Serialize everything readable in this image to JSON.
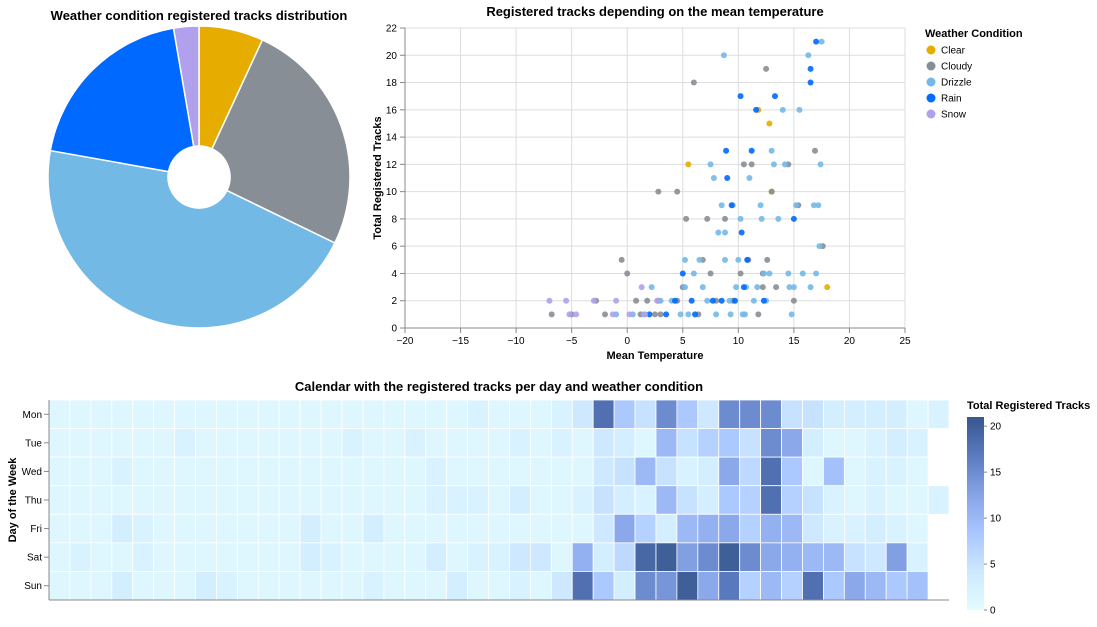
{
  "chart_data": [
    {
      "type": "pie",
      "title": "Weather condition registered tracks distribution",
      "donut": true,
      "categories": [
        "Clear",
        "Cloudy",
        "Drizzle",
        "Rain",
        "Snow"
      ],
      "values": [
        6.9,
        25.3,
        45.6,
        19.5,
        2.7
      ],
      "colors": [
        "#e6ac00",
        "#888e95",
        "#73b9e6",
        "#0069ff",
        "#b1a0ec"
      ]
    },
    {
      "type": "scatter",
      "title": "Registered tracks depending on the mean temperature",
      "xlabel": "Mean Temperature",
      "ylabel": "Total Registered Tracks",
      "xlim": [
        -20,
        25
      ],
      "ylim": [
        0,
        22
      ],
      "xticks": [
        "−20",
        "−15",
        "−10",
        "−5",
        "0",
        "5",
        "10",
        "15",
        "20",
        "25"
      ],
      "yticks": [
        "0",
        "2",
        "4",
        "6",
        "8",
        "10",
        "12",
        "14",
        "16",
        "18",
        "20",
        "22"
      ],
      "grid": true,
      "legend_title": "Weather Condition",
      "legend_position": "right",
      "series": [
        {
          "name": "Clear",
          "color": "#e6ac00",
          "points": [
            [
              5.5,
              12
            ],
            [
              11.8,
              16
            ],
            [
              12.8,
              15
            ],
            [
              13.0,
              10
            ],
            [
              18.0,
              3
            ]
          ]
        },
        {
          "name": "Cloudy",
          "color": "#888e95",
          "points": [
            [
              -6.8,
              1
            ],
            [
              -5.0,
              1
            ],
            [
              -2.8,
              2
            ],
            [
              -2.0,
              1
            ],
            [
              -0.5,
              5
            ],
            [
              0.0,
              4
            ],
            [
              0.8,
              2
            ],
            [
              1.2,
              1
            ],
            [
              1.8,
              2
            ],
            [
              2.5,
              1
            ],
            [
              2.8,
              2
            ],
            [
              3.0,
              1
            ],
            [
              2.8,
              10
            ],
            [
              4.5,
              10
            ],
            [
              4.5,
              2
            ],
            [
              5.0,
              3
            ],
            [
              5.3,
              8
            ],
            [
              6.0,
              18
            ],
            [
              6.4,
              1
            ],
            [
              6.8,
              5
            ],
            [
              7.2,
              8
            ],
            [
              7.5,
              4
            ],
            [
              8.0,
              2
            ],
            [
              8.8,
              8
            ],
            [
              9.5,
              2
            ],
            [
              10.2,
              4
            ],
            [
              10.5,
              12
            ],
            [
              10.9,
              5
            ],
            [
              11.2,
              12
            ],
            [
              11.8,
              1
            ],
            [
              12.2,
              3
            ],
            [
              12.5,
              19
            ],
            [
              12.2,
              4
            ],
            [
              12.6,
              5
            ],
            [
              13.0,
              10
            ],
            [
              13.4,
              3
            ],
            [
              14.5,
              12
            ],
            [
              15.0,
              2
            ],
            [
              15.4,
              9
            ],
            [
              16.9,
              13
            ],
            [
              17.6,
              6
            ]
          ]
        },
        {
          "name": "Drizzle",
          "color": "#73b9e6",
          "points": [
            [
              -1.0,
              1
            ],
            [
              0.5,
              1
            ],
            [
              1.5,
              1
            ],
            [
              2.2,
              3
            ],
            [
              3.0,
              2
            ],
            [
              4.0,
              2
            ],
            [
              4.8,
              1
            ],
            [
              5.2,
              5
            ],
            [
              5.2,
              3
            ],
            [
              5.5,
              1
            ],
            [
              6.0,
              4
            ],
            [
              6.5,
              5
            ],
            [
              6.8,
              3
            ],
            [
              7.2,
              2
            ],
            [
              7.5,
              12
            ],
            [
              7.8,
              11
            ],
            [
              8.0,
              1
            ],
            [
              8.2,
              7
            ],
            [
              8.5,
              9
            ],
            [
              8.7,
              20
            ],
            [
              8.8,
              5
            ],
            [
              8.8,
              7
            ],
            [
              9.2,
              2
            ],
            [
              9.3,
              1
            ],
            [
              9.5,
              9
            ],
            [
              9.8,
              3
            ],
            [
              10.0,
              5
            ],
            [
              10.2,
              8
            ],
            [
              10.4,
              1
            ],
            [
              10.6,
              1
            ],
            [
              10.7,
              3
            ],
            [
              11.0,
              11
            ],
            [
              11.4,
              2
            ],
            [
              11.7,
              3
            ],
            [
              12.0,
              9
            ],
            [
              12.1,
              8
            ],
            [
              12.3,
              4
            ],
            [
              12.5,
              2
            ],
            [
              12.8,
              4
            ],
            [
              13.0,
              13
            ],
            [
              13.2,
              12
            ],
            [
              13.6,
              8
            ],
            [
              14.0,
              16
            ],
            [
              14.2,
              12
            ],
            [
              14.5,
              4
            ],
            [
              14.6,
              3
            ],
            [
              14.8,
              1
            ],
            [
              15.0,
              3
            ],
            [
              15.2,
              9
            ],
            [
              15.5,
              16
            ],
            [
              15.8,
              4
            ],
            [
              16.3,
              20
            ],
            [
              16.5,
              3
            ],
            [
              16.8,
              9
            ],
            [
              17.2,
              9
            ],
            [
              17.4,
              12
            ],
            [
              17.3,
              6
            ],
            [
              17.5,
              21
            ],
            [
              17.0,
              4
            ]
          ]
        },
        {
          "name": "Rain",
          "color": "#0069ff",
          "points": [
            [
              2.0,
              1
            ],
            [
              3.5,
              1
            ],
            [
              4.3,
              2
            ],
            [
              5.0,
              4
            ],
            [
              5.8,
              2
            ],
            [
              6.1,
              1
            ],
            [
              7.7,
              2
            ],
            [
              8.5,
              2
            ],
            [
              8.9,
              13
            ],
            [
              9.0,
              11
            ],
            [
              9.4,
              9
            ],
            [
              9.7,
              2
            ],
            [
              10.2,
              17
            ],
            [
              10.3,
              7
            ],
            [
              10.5,
              3
            ],
            [
              10.8,
              5
            ],
            [
              11.2,
              13
            ],
            [
              11.6,
              16
            ],
            [
              12.3,
              2
            ],
            [
              13.3,
              17
            ],
            [
              15.0,
              8
            ],
            [
              16.5,
              19
            ],
            [
              16.5,
              18
            ],
            [
              17.0,
              21
            ]
          ]
        },
        {
          "name": "Snow",
          "color": "#b1a0ec",
          "points": [
            [
              -7.0,
              2
            ],
            [
              -5.5,
              2
            ],
            [
              -5.2,
              1
            ],
            [
              -4.6,
              1
            ],
            [
              -3.0,
              2
            ],
            [
              -1.3,
              1
            ],
            [
              -1.0,
              2
            ],
            [
              0.2,
              1
            ],
            [
              1.3,
              3
            ],
            [
              1.6,
              1
            ],
            [
              2.7,
              2
            ]
          ]
        }
      ]
    },
    {
      "type": "heatmap",
      "title": "Calendar with the registered tracks per day and weather condition",
      "ylabel": "Day of the Week",
      "rows": [
        "Mon",
        "Tue",
        "Wed",
        "Thu",
        "Fri",
        "Sat",
        "Sun"
      ],
      "weeks": 43,
      "legend_title": "Total Registered Tracks",
      "legend_position": "right",
      "scale": [
        0,
        21
      ],
      "scale_ticks": [
        "0",
        "5",
        "10",
        "15",
        "20"
      ],
      "colors": [
        "#e3fcff",
        "#cde8ff",
        "#a9c6ff",
        "#86a3e6",
        "#5a7bbf",
        "#37568d"
      ],
      "values": [
        [
          1,
          1,
          1,
          1,
          1,
          1,
          1,
          1,
          1,
          1,
          1,
          1,
          1,
          1,
          1,
          1,
          1,
          1,
          1,
          1,
          2,
          1,
          1,
          1,
          2,
          4,
          18,
          8,
          5,
          15,
          8,
          4,
          15,
          15,
          15,
          5,
          5,
          3,
          3,
          3,
          3,
          1,
          2
        ],
        [
          1,
          1,
          1,
          1,
          1,
          1,
          2,
          1,
          1,
          1,
          1,
          1,
          1,
          1,
          2,
          1,
          1,
          2,
          1,
          1,
          1,
          1,
          2,
          1,
          2,
          1,
          4,
          3,
          1,
          10,
          5,
          7,
          8,
          5,
          15,
          12,
          3,
          1,
          1,
          2,
          3,
          2,
          null
        ],
        [
          1,
          1,
          1,
          2,
          1,
          1,
          1,
          1,
          1,
          1,
          1,
          1,
          1,
          1,
          1,
          1,
          1,
          1,
          2,
          1,
          1,
          1,
          1,
          1,
          1,
          1,
          4,
          5,
          10,
          5,
          2,
          3,
          12,
          6,
          18,
          8,
          1,
          9,
          1,
          2,
          2,
          1,
          null
        ],
        [
          1,
          1,
          1,
          1,
          1,
          1,
          1,
          1,
          1,
          1,
          1,
          1,
          1,
          1,
          1,
          1,
          1,
          1,
          2,
          2,
          2,
          1,
          3,
          1,
          1,
          2,
          5,
          3,
          2,
          10,
          5,
          3,
          8,
          7,
          18,
          7,
          5,
          2,
          1,
          2,
          1,
          1,
          2
        ],
        [
          1,
          1,
          1,
          3,
          2,
          1,
          1,
          1,
          1,
          1,
          1,
          1,
          3,
          1,
          1,
          3,
          1,
          1,
          1,
          1,
          1,
          1,
          1,
          1,
          1,
          1,
          4,
          12,
          7,
          3,
          10,
          11,
          12,
          7,
          11,
          10,
          4,
          2,
          2,
          3,
          2,
          1,
          null
        ],
        [
          1,
          2,
          1,
          1,
          2,
          1,
          1,
          1,
          1,
          1,
          1,
          1,
          3,
          2,
          1,
          1,
          1,
          1,
          3,
          1,
          2,
          2,
          4,
          4,
          1,
          11,
          3,
          6,
          19,
          20,
          13,
          15,
          20,
          15,
          12,
          11,
          10,
          10,
          5,
          4,
          13,
          2,
          null
        ],
        [
          1,
          1,
          1,
          3,
          1,
          1,
          1,
          3,
          2,
          1,
          1,
          1,
          1,
          1,
          1,
          2,
          1,
          1,
          1,
          3,
          1,
          1,
          2,
          1,
          4,
          18,
          8,
          3,
          15,
          14,
          20,
          12,
          17,
          7,
          10,
          7,
          18,
          8,
          12,
          10,
          8,
          9,
          null
        ]
      ]
    }
  ]
}
